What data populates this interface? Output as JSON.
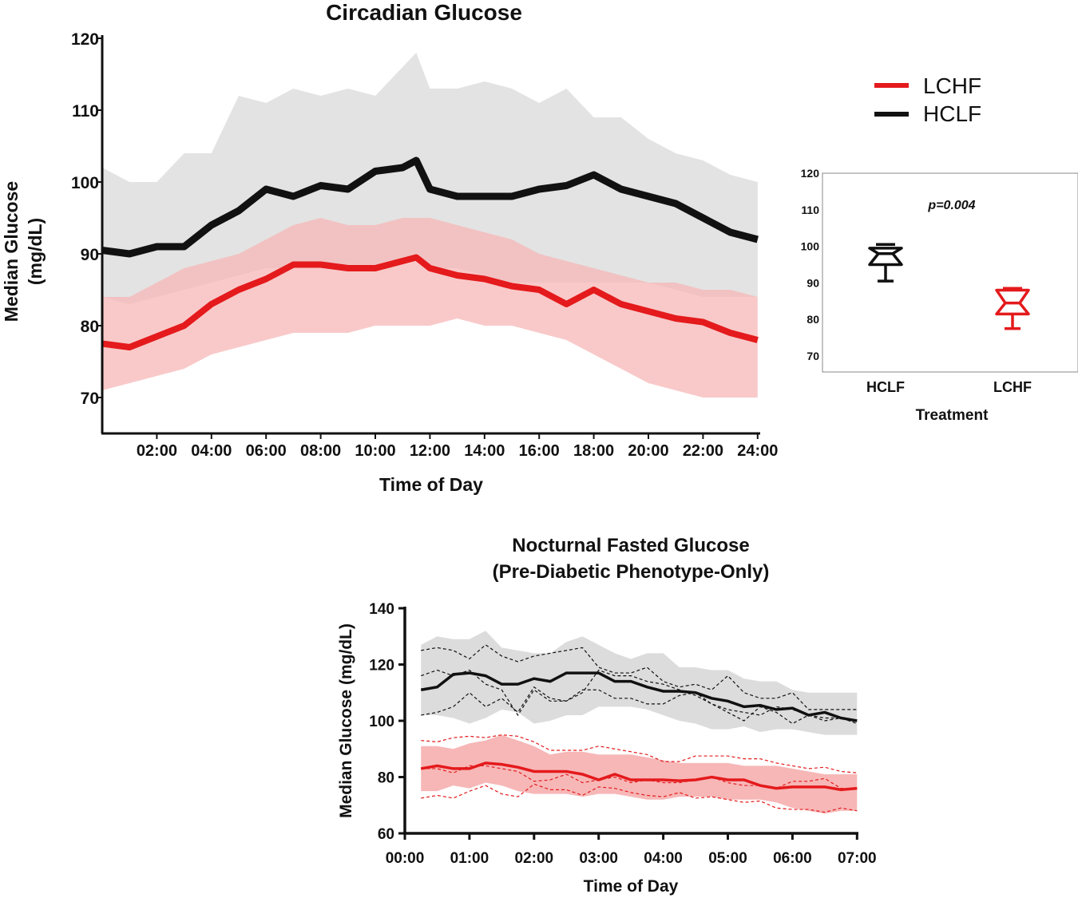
{
  "colors": {
    "lchf": "#e41a1c",
    "hclf": "#111111",
    "lchf_band": "#f7b7b7",
    "hclf_band": "#dcdcdc"
  },
  "chart_data": [
    {
      "type": "line",
      "title": "Circadian Glucose",
      "xlabel": "Time of Day",
      "ylabel_lines": [
        "Median Glucose",
        "(mg/dL)"
      ],
      "xlim": [
        0,
        24
      ],
      "ylim": [
        65,
        120
      ],
      "yticks": [
        70,
        80,
        90,
        100,
        110,
        120
      ],
      "xticks": [
        2,
        4,
        6,
        8,
        10,
        12,
        14,
        16,
        18,
        20,
        22,
        24
      ],
      "xtick_labels": [
        "02:00",
        "04:00",
        "06:00",
        "08:00",
        "10:00",
        "12:00",
        "14:00",
        "16:00",
        "18:00",
        "20:00",
        "22:00",
        "24:00"
      ],
      "legend": {
        "position": "top-right",
        "entries": [
          "LCHF",
          "HCLF"
        ]
      },
      "x": [
        0,
        1,
        2,
        3,
        4,
        5,
        6,
        7,
        8,
        9,
        10,
        11,
        11.5,
        12,
        13,
        14,
        15,
        16,
        17,
        18,
        19,
        20,
        21,
        22,
        23,
        24
      ],
      "series": [
        {
          "name": "HCLF",
          "median": [
            90.5,
            90,
            91,
            91,
            94,
            96,
            99,
            98,
            99.5,
            99,
            101.5,
            102,
            103,
            99,
            98,
            98,
            98,
            99,
            99.5,
            101,
            99,
            98,
            97,
            95,
            93,
            92
          ],
          "upper": [
            102,
            100,
            100,
            104,
            104,
            112,
            111,
            113,
            112,
            113,
            112,
            116,
            118,
            113,
            113,
            114,
            113,
            111,
            113,
            109,
            109,
            106,
            104,
            103,
            101,
            100
          ],
          "lower": [
            84,
            83,
            84,
            85,
            86,
            87,
            88,
            88,
            89,
            88,
            88,
            89,
            89,
            88,
            88,
            87,
            86,
            86,
            86,
            86,
            86,
            86,
            85,
            84,
            84,
            84
          ]
        },
        {
          "name": "LCHF",
          "median": [
            77.5,
            77,
            78.5,
            80,
            83,
            85,
            86.5,
            88.5,
            88.5,
            88,
            88,
            89,
            89.5,
            88,
            87,
            86.5,
            85.5,
            85,
            83,
            85,
            83,
            82,
            81,
            80.5,
            79,
            78
          ],
          "upper": [
            84,
            84,
            86,
            88,
            89,
            90,
            92,
            94,
            95,
            94,
            94,
            95,
            95,
            95,
            94,
            93,
            92,
            90,
            89,
            88,
            87,
            86,
            86,
            85,
            85,
            84
          ],
          "lower": [
            71,
            72,
            73,
            74,
            76,
            77,
            78,
            79,
            79,
            79,
            80,
            80,
            80,
            80,
            81,
            80,
            80,
            79,
            78,
            76,
            74,
            72,
            71,
            70,
            70,
            70
          ]
        }
      ]
    },
    {
      "type": "box",
      "xlabel": "Treatment",
      "annotation": "p=0.004",
      "ylim": [
        65,
        120
      ],
      "yticks": [
        70,
        80,
        90,
        100,
        110,
        120
      ],
      "categories": [
        "HCLF",
        "LCHF"
      ],
      "boxes": [
        {
          "name": "HCLF",
          "min": 90.5,
          "q1": 95,
          "median": 98,
          "q3": 99.5,
          "max": 100.5
        },
        {
          "name": "LCHF",
          "min": 77.5,
          "q1": 81.5,
          "median": 84.5,
          "q3": 88,
          "max": 88.5
        }
      ]
    },
    {
      "type": "line",
      "title_lines": [
        "Nocturnal Fasted Glucose",
        "(Pre-Diabetic Phenotype-Only)"
      ],
      "xlabel": "Time of Day",
      "ylabel": "Median Glucose (mg/dL)",
      "xlim": [
        0,
        7
      ],
      "ylim": [
        60,
        140
      ],
      "yticks": [
        60,
        80,
        100,
        120,
        140
      ],
      "xtick_labels": [
        "00:00",
        "01:00",
        "02:00",
        "03:00",
        "04:00",
        "05:00",
        "06:00",
        "07:00"
      ],
      "x_start_hours": 0.25,
      "x_step_hours": 0.25,
      "series": [
        {
          "name": "HCLF",
          "median": [
            111,
            112,
            116.5,
            117,
            116,
            113,
            113,
            115,
            114,
            117,
            117,
            117,
            114,
            114,
            112,
            110.5,
            110.5,
            110,
            108,
            107,
            105,
            105.5,
            104,
            104.5,
            102,
            103,
            101,
            100
          ],
          "upper": [
            127,
            130,
            129,
            129,
            132,
            126,
            125,
            124,
            124,
            128,
            130,
            127,
            124,
            122,
            124,
            124,
            119,
            119,
            118,
            118,
            115,
            114,
            114,
            111,
            110,
            110,
            110,
            110
          ],
          "lower": [
            102,
            102,
            101,
            99,
            101,
            104,
            103,
            99,
            100,
            102,
            102,
            105,
            105,
            105,
            104,
            102,
            100,
            99,
            97,
            97,
            98,
            96,
            97,
            97,
            96,
            95,
            95,
            95
          ],
          "individuals": [
            [
              125,
              126,
              125,
              122,
              127,
              123,
              121,
              123,
              124,
              125,
              126,
              119,
              117,
              117,
              119,
              114,
              112,
              113,
              111,
              116,
              110,
              108,
              108,
              110,
              104,
              104,
              104,
              104
            ],
            [
              116,
              118,
              116,
              118,
              113,
              111,
              102,
              111,
              107,
              107,
              110,
              118,
              116,
              116,
              114,
              113,
              111,
              109,
              106,
              104,
              103,
              102,
              105,
              104,
              102,
              101,
              101,
              99
            ],
            [
              102,
              103,
              105,
              110,
              105,
              108,
              103,
              112,
              108,
              107,
              111,
              111,
              108,
              108,
              106,
              106,
              109,
              110,
              106,
              103,
              100,
              105,
              103,
              99,
              102,
              100,
              101,
              100
            ]
          ]
        },
        {
          "name": "LCHF",
          "median": [
            83,
            84,
            83,
            83,
            85,
            84.5,
            83.5,
            82,
            82,
            82,
            81,
            79,
            81,
            79,
            79,
            79,
            78.7,
            79,
            80,
            79,
            79,
            77,
            76,
            76.5,
            76.5,
            76.5,
            75.5,
            76
          ],
          "upper": [
            91,
            91,
            90,
            92,
            93,
            95,
            93,
            91,
            88,
            89,
            89,
            88,
            88,
            88,
            87,
            86,
            85,
            85,
            85,
            85,
            84,
            84,
            84,
            83,
            82,
            81,
            81,
            81
          ],
          "lower": [
            75,
            75,
            77,
            76,
            78,
            77,
            75,
            74,
            74,
            74,
            73,
            74,
            74,
            73,
            72,
            72,
            73,
            73,
            73,
            72,
            72,
            72,
            71,
            69,
            68,
            67,
            68,
            68
          ],
          "individuals": [
            [
              93,
              92.5,
              94,
              94.5,
              94,
              95,
              94.5,
              92.5,
              89.5,
              89.5,
              89.5,
              91,
              90,
              89,
              88,
              85.5,
              85.5,
              87.5,
              87.5,
              87.5,
              86.5,
              86.5,
              85,
              84,
              83,
              83.5,
              82,
              81.5
            ],
            [
              83,
              83,
              81.5,
              84,
              84,
              83,
              82,
              78.5,
              79,
              81,
              78,
              79,
              80,
              78,
              79,
              78,
              78,
              79,
              80,
              78,
              77,
              77,
              76,
              78.5,
              78.5,
              79.5,
              76,
              76
            ],
            [
              72.5,
              73.5,
              72.5,
              75,
              77,
              74,
              73,
              77.5,
              75.5,
              75.5,
              73.5,
              76.5,
              76,
              74.5,
              73.5,
              73,
              74.5,
              72.5,
              73,
              72,
              71,
              71.5,
              69,
              68.5,
              68.5,
              67.5,
              69,
              68
            ]
          ]
        }
      ]
    }
  ]
}
